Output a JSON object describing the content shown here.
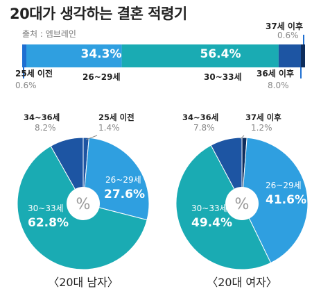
{
  "title": "20대가 생각하는 결혼 적령기",
  "source": "출처 : 엠브레인",
  "colors": {
    "s1": "#1f6fd1",
    "s2": "#2f9fe0",
    "s3": "#1aabb3",
    "s4": "#1d55a3",
    "s5": "#0e2d5c"
  },
  "center_label": "%",
  "chart_data": [
    {
      "type": "bar",
      "orientation": "horizontal-stacked",
      "categories": [
        "25세 이전",
        "26~29세",
        "30~33세",
        "36세 이후",
        "37세 이후"
      ],
      "values": [
        0.6,
        34.3,
        56.4,
        8.0,
        0.6
      ],
      "value_labels": [
        "0.6%",
        "34.3%",
        "56.4%",
        "8.0%",
        "0.6%"
      ]
    },
    {
      "type": "pie",
      "title": "〈20대 남자〉",
      "categories": [
        "25세 이전",
        "26~29세",
        "30~33세",
        "34~36세"
      ],
      "values": [
        1.4,
        27.6,
        62.8,
        8.2
      ],
      "value_labels": [
        "1.4%",
        "27.6%",
        "62.8%",
        "8.2%"
      ]
    },
    {
      "type": "pie",
      "title": "〈20대 여자〉",
      "categories": [
        "37세 이후",
        "26~29세",
        "30~33세",
        "34~36세"
      ],
      "values": [
        1.2,
        41.6,
        49.4,
        7.8
      ],
      "value_labels": [
        "1.2%",
        "41.6%",
        "49.4%",
        "7.8%"
      ]
    }
  ]
}
